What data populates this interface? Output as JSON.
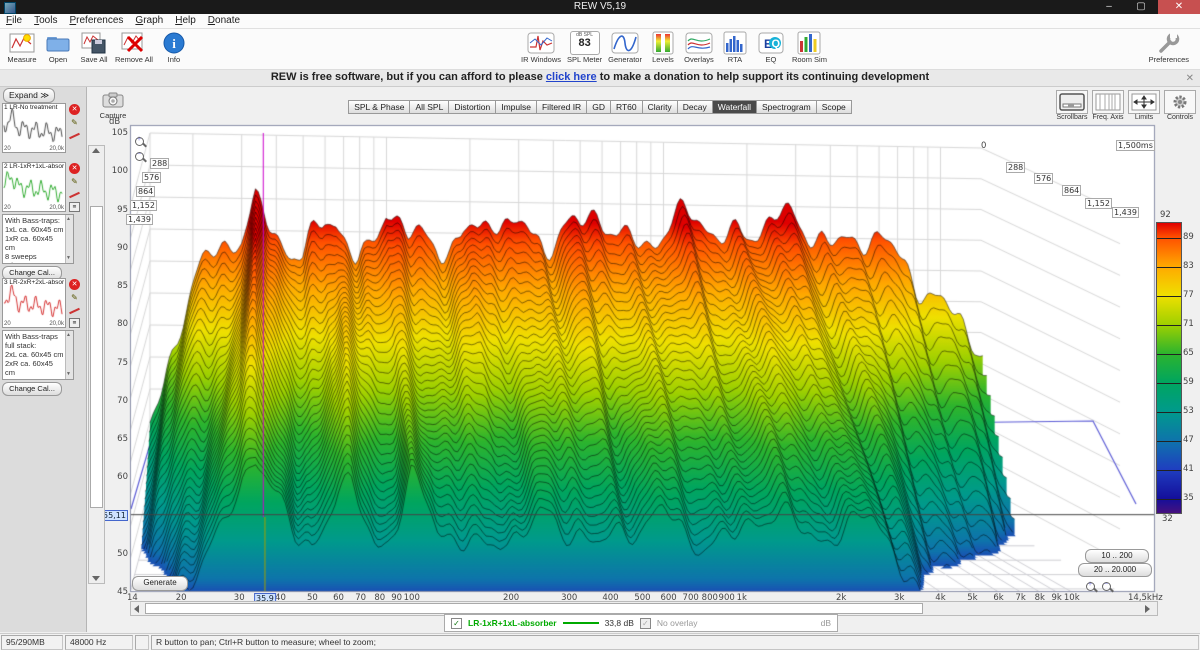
{
  "window": {
    "title": "REW V5,19",
    "minimize": "–",
    "maximize": "▢",
    "close": "✕"
  },
  "menu": {
    "items": [
      "File",
      "Tools",
      "Preferences",
      "Graph",
      "Help",
      "Donate"
    ]
  },
  "toolbar": {
    "left": [
      {
        "icon": "measure",
        "label": "Measure"
      },
      {
        "icon": "open",
        "label": "Open"
      },
      {
        "icon": "save-all",
        "label": "Save All"
      },
      {
        "icon": "remove-all",
        "label": "Remove All"
      },
      {
        "icon": "info",
        "label": "Info"
      }
    ],
    "center": [
      {
        "icon": "ir-windows",
        "label": "IR Windows"
      },
      {
        "icon": "spl-meter",
        "label": "SPL Meter",
        "badge_top": "dB SPL",
        "badge_value": "83"
      },
      {
        "icon": "generator",
        "label": "Generator"
      },
      {
        "icon": "levels",
        "label": "Levels"
      },
      {
        "icon": "overlays",
        "label": "Overlays"
      },
      {
        "icon": "rta",
        "label": "RTA"
      },
      {
        "icon": "eq",
        "label": "EQ"
      },
      {
        "icon": "room-sim",
        "label": "Room Sim"
      }
    ],
    "right": [
      {
        "icon": "preferences",
        "label": "Preferences"
      }
    ]
  },
  "banner": {
    "text_before": "REW is free software, but if you can afford to please ",
    "link": "click here",
    "text_after": " to make a donation to help support its continuing development",
    "close": "✕"
  },
  "sidebar": {
    "expand_label": "Expand ≫",
    "panels": [
      {
        "num": "1",
        "title": "LR-No treatment",
        "color": "#222222",
        "xmin": "20",
        "xmax": "20,0k",
        "notes": [],
        "change_cal": ""
      },
      {
        "num": "2",
        "title": "LR-1xR+1xL-absorber",
        "color": "#009900",
        "xmin": "20",
        "xmax": "20,0k",
        "notes": [
          "With Bass-traps:",
          "1xL ca. 60x45 cm",
          "1xR ca. 60x45 cm",
          "8 sweeps",
          "Mic 70°"
        ],
        "change_cal": "Change Cal..."
      },
      {
        "num": "3",
        "title": "LR-2xR+2xL-absorber",
        "color": "#cc0000",
        "xmin": "20",
        "xmax": "20,0k",
        "notes": [
          "With Bass-traps",
          "full stack:",
          "2xL ca. 60x45 cm",
          "2xR ca. 60x45 cm",
          "8 sweeps"
        ],
        "change_cal": "Change Cal..."
      }
    ]
  },
  "graph": {
    "capture_label": "Capture",
    "tabs": [
      "SPL & Phase",
      "All SPL",
      "Distortion",
      "Impulse",
      "Filtered IR",
      "GD",
      "RT60",
      "Clarity",
      "Decay",
      "Waterfall",
      "Spectrogram",
      "Scope"
    ],
    "active_tab": "Waterfall",
    "top_right_buttons": [
      "Scrollbars",
      "Freq. Axis",
      "Limits",
      "Controls"
    ],
    "generate_label": "Generate",
    "range_buttons": [
      "10 .. 200",
      "20 .. 20.000"
    ]
  },
  "legend": {
    "measurement": "LR-1xR+1xL-absorber",
    "value": "33,8 dB",
    "overlay": "No overlay",
    "unit": "dB"
  },
  "status": {
    "memory": "95/290MB",
    "sample_rate": "48000 Hz",
    "hint": "R button to pan; Ctrl+R button to measure; wheel to zoom;"
  },
  "chart_data": {
    "type": "waterfall",
    "title": "",
    "xlabel_unit": "Hz",
    "ylabel": "dB",
    "x_range_hz": [
      14,
      14500
    ],
    "y_range_db": [
      45,
      105
    ],
    "time_range_ms": [
      0,
      1500
    ],
    "x_ticks": [
      {
        "f": 14,
        "label": "14"
      },
      {
        "f": 20,
        "label": "20"
      },
      {
        "f": 30,
        "label": "30"
      },
      {
        "f": 40,
        "label": "40"
      },
      {
        "f": 50,
        "label": "50"
      },
      {
        "f": 60,
        "label": "60"
      },
      {
        "f": 70,
        "label": "70"
      },
      {
        "f": 80,
        "label": "80"
      },
      {
        "f": 90,
        "label": "90"
      },
      {
        "f": 100,
        "label": "100"
      },
      {
        "f": 200,
        "label": "200"
      },
      {
        "f": 300,
        "label": "300"
      },
      {
        "f": 400,
        "label": "400"
      },
      {
        "f": 500,
        "label": "500"
      },
      {
        "f": 600,
        "label": "600"
      },
      {
        "f": 700,
        "label": "700"
      },
      {
        "f": 800,
        "label": "800"
      },
      {
        "f": 900,
        "label": "900"
      },
      {
        "f": 1000,
        "label": "1k"
      },
      {
        "f": 2000,
        "label": "2k"
      },
      {
        "f": 3000,
        "label": "3k"
      },
      {
        "f": 4000,
        "label": "4k"
      },
      {
        "f": 5000,
        "label": "5k"
      },
      {
        "f": 6000,
        "label": "6k"
      },
      {
        "f": 7000,
        "label": "7k"
      },
      {
        "f": 8000,
        "label": "8k"
      },
      {
        "f": 9000,
        "label": "9k"
      },
      {
        "f": 10000,
        "label": "10k"
      }
    ],
    "x_end_label": "14,5kHz",
    "y_ticks": [
      105,
      100,
      95,
      90,
      85,
      80,
      75,
      70,
      65,
      60,
      50,
      45
    ],
    "time_labels": [
      "288",
      "576",
      "864",
      "1,152",
      "1,439"
    ],
    "time_zero_label": "0",
    "time_end_label": "1,500ms",
    "cursor": {
      "freq_label": "35,9",
      "db_label": "55,11",
      "freq_hz": 35.9,
      "db": 55.11
    },
    "colorbar": {
      "top": "92",
      "bottom": "32",
      "labels": [
        "89",
        "83",
        "77",
        "71",
        "65",
        "59",
        "53",
        "47",
        "41",
        "35"
      ],
      "stops": [
        [
          92,
          "#e00000"
        ],
        [
          89,
          "#ff5000"
        ],
        [
          83,
          "#ffa800"
        ],
        [
          77,
          "#efe000"
        ],
        [
          71,
          "#9fd000"
        ],
        [
          65,
          "#2db42d"
        ],
        [
          59,
          "#00a55f"
        ],
        [
          53,
          "#009a8c"
        ],
        [
          47,
          "#0e74ab"
        ],
        [
          41,
          "#1f3ec0"
        ],
        [
          35,
          "#140f9b"
        ],
        [
          32,
          "#46107e"
        ]
      ]
    },
    "slices": 36,
    "response_anchors": [
      [
        14,
        60
      ],
      [
        16,
        69
      ],
      [
        18,
        76
      ],
      [
        20,
        80
      ],
      [
        23,
        84
      ],
      [
        26,
        87
      ],
      [
        30,
        90
      ],
      [
        33.5,
        96
      ],
      [
        36,
        94
      ],
      [
        40,
        90
      ],
      [
        45,
        85
      ],
      [
        50,
        84
      ],
      [
        55,
        88
      ],
      [
        60,
        92
      ],
      [
        66,
        93
      ],
      [
        72,
        90
      ],
      [
        78,
        87
      ],
      [
        85,
        87
      ],
      [
        92,
        89
      ],
      [
        100,
        93
      ],
      [
        110,
        90
      ],
      [
        120,
        88
      ],
      [
        135,
        89
      ],
      [
        150,
        90
      ],
      [
        170,
        89
      ],
      [
        190,
        91
      ],
      [
        215,
        89
      ],
      [
        245,
        91
      ],
      [
        280,
        90
      ],
      [
        320,
        92
      ],
      [
        370,
        90
      ],
      [
        430,
        91
      ],
      [
        500,
        90
      ],
      [
        580,
        92
      ],
      [
        680,
        90
      ],
      [
        800,
        91
      ],
      [
        950,
        90
      ],
      [
        1100,
        91
      ],
      [
        1300,
        92
      ],
      [
        1550,
        91
      ],
      [
        1850,
        92
      ],
      [
        2200,
        91
      ],
      [
        2600,
        92
      ],
      [
        3100,
        91
      ],
      [
        3700,
        92
      ],
      [
        4400,
        90
      ],
      [
        5200,
        89
      ],
      [
        6200,
        88
      ],
      [
        7500,
        86
      ],
      [
        9000,
        83
      ],
      [
        11000,
        78
      ],
      [
        14000,
        70
      ]
    ],
    "decay": {
      "base": 36,
      "hf_corner": 2500,
      "hf_slope": 80,
      "modes": [
        [
          33.5,
          9,
          0.22
        ],
        [
          63,
          5,
          0.25
        ],
        [
          100,
          4,
          0.22
        ]
      ]
    },
    "legend_series": {
      "name": "LR-1xR+1xL-absorber",
      "color": "#00aa00"
    }
  }
}
